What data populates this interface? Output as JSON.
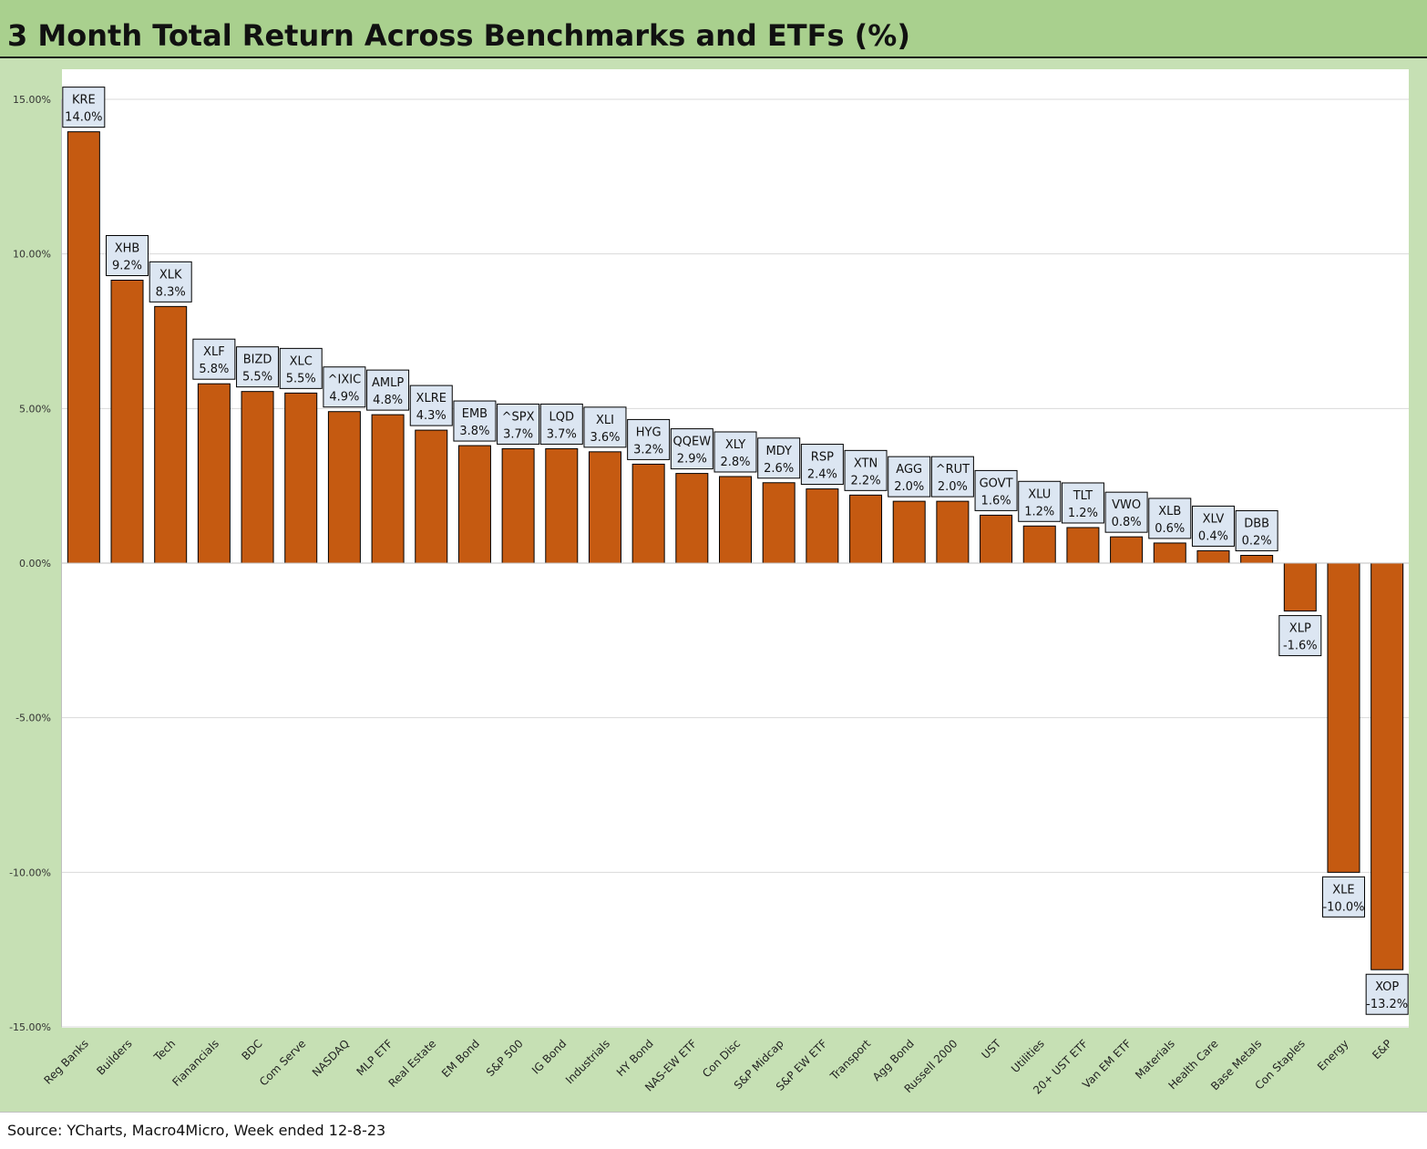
{
  "title": "3 Month Total Return Across Benchmarks and ETFs (%)",
  "source": "Source: YCharts, Macro4Micro, Week ended 12-8-23",
  "colors": {
    "bar": "#c55a11",
    "title_bg": "#a9d08e",
    "frame_bg": "#c6e0b4",
    "label_bg": "#dce6f2"
  },
  "chart_data": {
    "type": "bar",
    "title": "3 Month Total Return Across Benchmarks and ETFs (%)",
    "xlabel": "",
    "ylabel": "",
    "ylim": [
      -15,
      15
    ],
    "yticks": [
      15,
      10,
      5,
      0,
      -5,
      -10,
      -15
    ],
    "ytick_labels": [
      "15.00%",
      "10.00%",
      "5.00%",
      "0.00%",
      "-5.00%",
      "-10.00%",
      "-15.00%"
    ],
    "grid": true,
    "categories": [
      "Reg Banks",
      "Builders",
      "Tech",
      "Fianancials",
      "BDC",
      "Com Serve",
      "NASDAQ",
      "MLP ETF",
      "Real Estate",
      "EM Bond",
      "S&P 500",
      "IG Bond",
      "Industrials",
      "HY Bond",
      "NAS-EW ETF",
      "Con Disc",
      "S&P Midcap",
      "S&P EW ETF",
      "Transport",
      "Agg Bond",
      "Russell 2000",
      "UST",
      "Utilities",
      "20+ UST ETF",
      "Van EM ETF",
      "Materials",
      "Health Care",
      "Base Metals",
      "Con Staples",
      "Energy",
      "E&P"
    ],
    "tickers": [
      "KRE",
      "XHB",
      "XLK",
      "XLF",
      "BIZD",
      "XLC",
      "^IXIC",
      "AMLP",
      "XLRE",
      "EMB",
      "^SPX",
      "LQD",
      "XLI",
      "HYG",
      "QQEW",
      "XLY",
      "MDY",
      "RSP",
      "XTN",
      "AGG",
      "^RUT",
      "GOVT",
      "XLU",
      "TLT",
      "VWO",
      "XLB",
      "XLV",
      "DBB",
      "XLP",
      "XLE",
      "XOP"
    ],
    "value_labels": [
      "14.0%",
      "9.2%",
      "8.3%",
      "5.8%",
      "5.5%",
      "5.5%",
      "4.9%",
      "4.8%",
      "4.3%",
      "3.8%",
      "3.7%",
      "3.7%",
      "3.6%",
      "3.2%",
      "2.9%",
      "2.8%",
      "2.6%",
      "2.4%",
      "2.2%",
      "2.0%",
      "2.0%",
      "1.6%",
      "1.2%",
      "1.2%",
      "0.8%",
      "0.6%",
      "0.4%",
      "0.2%",
      "-1.6%",
      "-10.0%",
      "-13.2%"
    ],
    "values": [
      13.95,
      9.15,
      8.3,
      5.8,
      5.55,
      5.5,
      4.9,
      4.8,
      4.3,
      3.8,
      3.7,
      3.7,
      3.6,
      3.2,
      2.9,
      2.8,
      2.6,
      2.4,
      2.2,
      2.0,
      2.0,
      1.55,
      1.2,
      1.15,
      0.85,
      0.65,
      0.4,
      0.25,
      -1.55,
      -10.0,
      -13.15
    ]
  }
}
